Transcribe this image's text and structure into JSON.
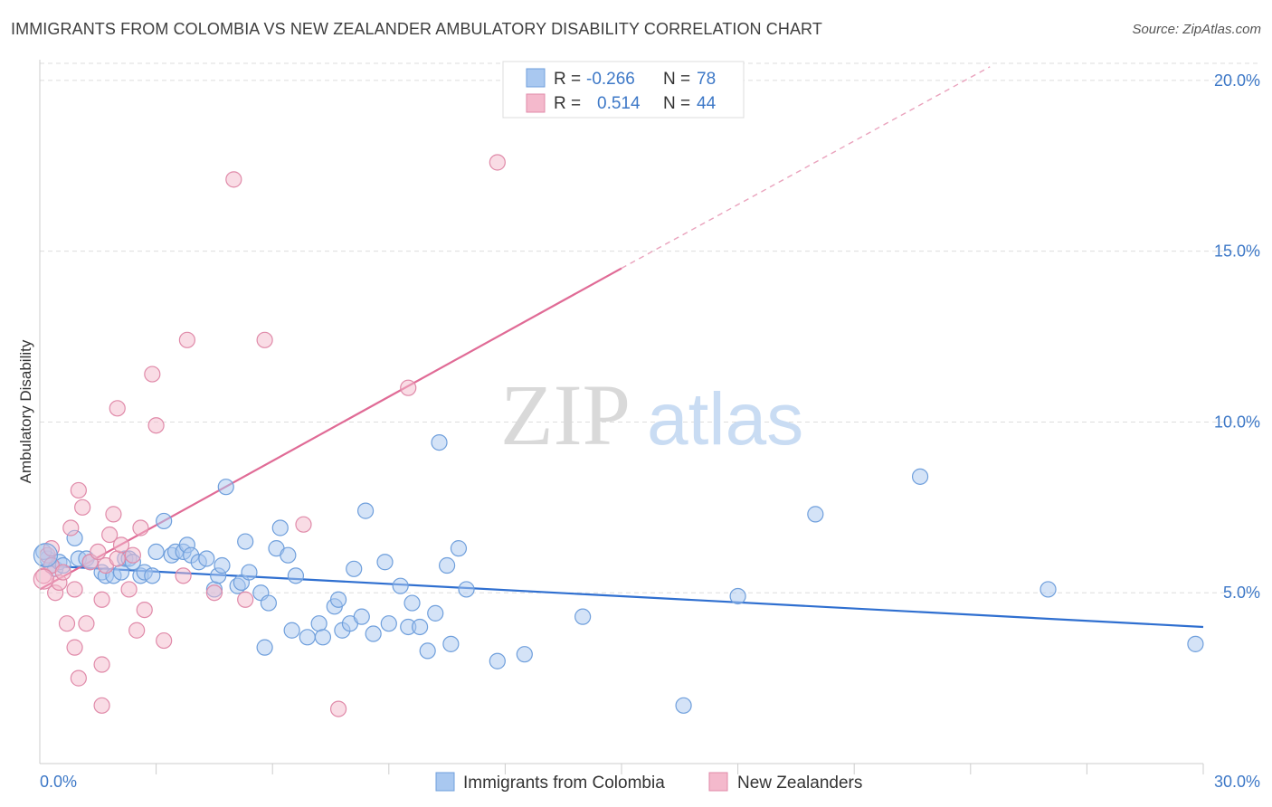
{
  "header": {
    "title": "IMMIGRANTS FROM COLOMBIA VS NEW ZEALANDER AMBULATORY DISABILITY CORRELATION CHART",
    "source": "Source: ZipAtlas.com"
  },
  "watermark": {
    "zip": "ZIP",
    "atlas": "atlas"
  },
  "colors": {
    "blue": "#3d78c7",
    "blue_fill": "#a9c8f0",
    "blue_line": "#2f6fd0",
    "pink": "#e06b96",
    "pink_fill": "#f4b9cc",
    "grid": "#dddddd"
  },
  "legend": {
    "rows": [
      {
        "r_label": "R =",
        "r_value": "-0.266",
        "n_label": "N =",
        "n_value": "78"
      },
      {
        "r_label": "R =",
        "r_value": "0.514",
        "n_label": "N =",
        "n_value": "44"
      }
    ]
  },
  "chart_data": {
    "type": "scatter",
    "title": "IMMIGRANTS FROM COLOMBIA VS NEW ZEALANDER AMBULATORY DISABILITY CORRELATION CHART",
    "xlabel": "",
    "ylabel": "Ambulatory Disability",
    "xlim": [
      0,
      30
    ],
    "ylim": [
      0,
      20.5
    ],
    "x_tick_labels": [
      "0.0%",
      "30.0%"
    ],
    "y_ticks": [
      5,
      10,
      15,
      20
    ],
    "y_tick_labels": [
      "5.0%",
      "10.0%",
      "15.0%",
      "20.0%"
    ],
    "legend_position": "top-center",
    "grid": true,
    "series": [
      {
        "name": "Immigrants from Colombia",
        "r": -0.266,
        "n": 78,
        "trend": {
          "x0": 0,
          "y0": 5.8,
          "x1": 30,
          "y1": 4.0
        },
        "points": [
          [
            0.2,
            6.0
          ],
          [
            0.3,
            5.8
          ],
          [
            0.4,
            5.7
          ],
          [
            0.5,
            5.9
          ],
          [
            0.6,
            5.8
          ],
          [
            0.9,
            6.6
          ],
          [
            1.0,
            6.0
          ],
          [
            1.2,
            6.0
          ],
          [
            1.3,
            5.9
          ],
          [
            1.6,
            5.6
          ],
          [
            1.7,
            5.5
          ],
          [
            1.9,
            5.5
          ],
          [
            2.1,
            5.6
          ],
          [
            2.2,
            6.0
          ],
          [
            2.3,
            6.0
          ],
          [
            2.4,
            5.9
          ],
          [
            2.6,
            5.5
          ],
          [
            2.7,
            5.6
          ],
          [
            2.9,
            5.5
          ],
          [
            3.0,
            6.2
          ],
          [
            3.2,
            7.1
          ],
          [
            3.4,
            6.1
          ],
          [
            3.5,
            6.2
          ],
          [
            3.7,
            6.2
          ],
          [
            3.8,
            6.4
          ],
          [
            3.9,
            6.1
          ],
          [
            4.1,
            5.9
          ],
          [
            4.3,
            6.0
          ],
          [
            4.5,
            5.1
          ],
          [
            4.6,
            5.5
          ],
          [
            4.7,
            5.8
          ],
          [
            4.8,
            8.1
          ],
          [
            5.1,
            5.2
          ],
          [
            5.2,
            5.3
          ],
          [
            5.3,
            6.5
          ],
          [
            5.4,
            5.6
          ],
          [
            5.7,
            5.0
          ],
          [
            5.8,
            3.4
          ],
          [
            5.9,
            4.7
          ],
          [
            6.1,
            6.3
          ],
          [
            6.2,
            6.9
          ],
          [
            6.4,
            6.1
          ],
          [
            6.5,
            3.9
          ],
          [
            6.6,
            5.5
          ],
          [
            6.9,
            3.7
          ],
          [
            7.2,
            4.1
          ],
          [
            7.3,
            3.7
          ],
          [
            7.6,
            4.6
          ],
          [
            7.7,
            4.8
          ],
          [
            7.8,
            3.9
          ],
          [
            8.0,
            4.1
          ],
          [
            8.1,
            5.7
          ],
          [
            8.3,
            4.3
          ],
          [
            8.4,
            7.4
          ],
          [
            8.6,
            3.8
          ],
          [
            8.9,
            5.9
          ],
          [
            9.0,
            4.1
          ],
          [
            9.3,
            5.2
          ],
          [
            9.5,
            4.0
          ],
          [
            9.6,
            4.7
          ],
          [
            9.8,
            4.0
          ],
          [
            10.0,
            3.3
          ],
          [
            10.2,
            4.4
          ],
          [
            10.3,
            9.4
          ],
          [
            10.5,
            5.8
          ],
          [
            10.6,
            3.5
          ],
          [
            10.8,
            6.3
          ],
          [
            11.0,
            5.1
          ],
          [
            11.8,
            3.0
          ],
          [
            12.5,
            3.2
          ],
          [
            14.0,
            4.3
          ],
          [
            16.6,
            1.7
          ],
          [
            18.0,
            4.9
          ],
          [
            20.0,
            7.3
          ],
          [
            22.7,
            8.4
          ],
          [
            26.0,
            5.1
          ],
          [
            29.8,
            3.5
          ],
          [
            0.1,
            6.2
          ]
        ]
      },
      {
        "name": "New Zealanders",
        "r": 0.514,
        "n": 44,
        "trend": {
          "x0": 0,
          "y0": 5.1,
          "x1": 15,
          "y1": 14.5,
          "x1_dashed": 24.5,
          "y1_dashed": 20.4
        },
        "points": [
          [
            0.1,
            5.5
          ],
          [
            0.2,
            6.1
          ],
          [
            0.3,
            6.3
          ],
          [
            0.3,
            5.8
          ],
          [
            0.4,
            5.0
          ],
          [
            0.5,
            5.3
          ],
          [
            0.6,
            5.6
          ],
          [
            0.7,
            4.1
          ],
          [
            0.8,
            6.9
          ],
          [
            0.9,
            5.1
          ],
          [
            0.9,
            3.4
          ],
          [
            1.0,
            8.0
          ],
          [
            1.0,
            2.5
          ],
          [
            1.1,
            7.5
          ],
          [
            1.2,
            4.1
          ],
          [
            1.3,
            5.9
          ],
          [
            1.5,
            6.2
          ],
          [
            1.6,
            1.7
          ],
          [
            1.6,
            4.8
          ],
          [
            1.6,
            2.9
          ],
          [
            1.7,
            5.8
          ],
          [
            1.8,
            6.7
          ],
          [
            1.9,
            7.3
          ],
          [
            2.0,
            6.0
          ],
          [
            2.0,
            10.4
          ],
          [
            2.1,
            6.4
          ],
          [
            2.3,
            5.1
          ],
          [
            2.4,
            6.1
          ],
          [
            2.5,
            3.9
          ],
          [
            2.6,
            6.9
          ],
          [
            2.7,
            4.5
          ],
          [
            2.9,
            11.4
          ],
          [
            3.0,
            9.9
          ],
          [
            3.2,
            3.6
          ],
          [
            3.7,
            5.5
          ],
          [
            3.8,
            12.4
          ],
          [
            4.5,
            5.0
          ],
          [
            5.0,
            17.1
          ],
          [
            5.3,
            4.8
          ],
          [
            5.8,
            12.4
          ],
          [
            6.8,
            7.0
          ],
          [
            7.7,
            1.6
          ],
          [
            9.5,
            11.0
          ],
          [
            11.8,
            17.6
          ]
        ]
      }
    ]
  }
}
